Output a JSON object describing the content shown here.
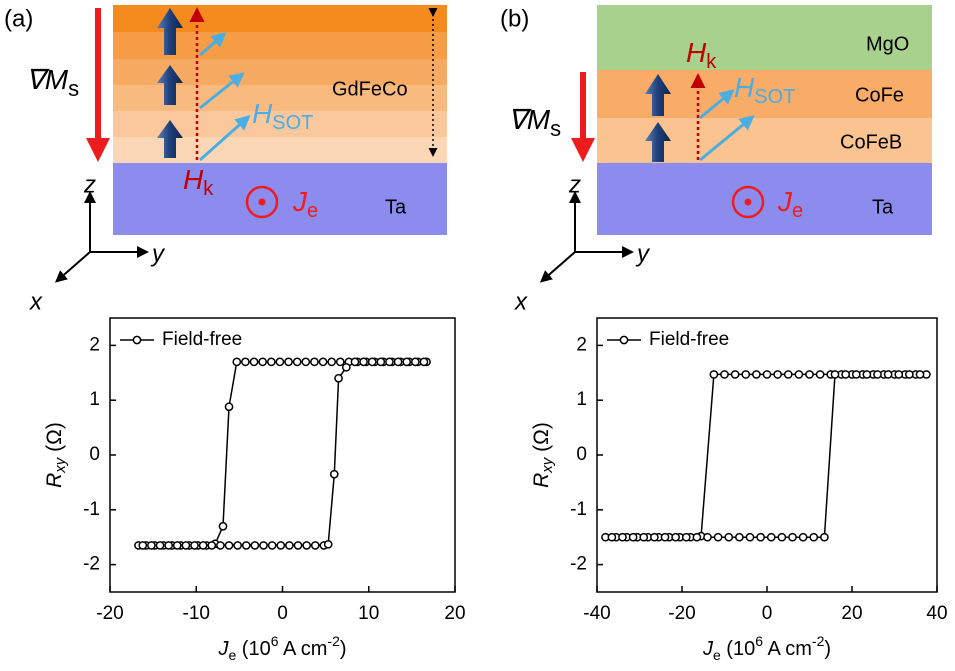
{
  "panels": [
    {
      "label": "(a)",
      "grad": [
        "∇M",
        "s"
      ],
      "hk": [
        "H",
        "k"
      ],
      "hsot": [
        "H",
        "SOT"
      ],
      "je": [
        "J",
        "e"
      ],
      "layers": [
        "GdFeCo",
        "Ta"
      ],
      "axes": [
        "z",
        "y",
        "x"
      ]
    },
    {
      "label": "(b)",
      "grad": [
        "∇M",
        "s"
      ],
      "hk": [
        "H",
        "k"
      ],
      "hsot": [
        "H",
        "SOT"
      ],
      "je": [
        "J",
        "e"
      ],
      "layers": [
        "MgO",
        "CoFe",
        "CoFeB",
        "Ta"
      ],
      "axes": [
        "z",
        "y",
        "x"
      ]
    }
  ],
  "chart_data": [
    {
      "type": "line",
      "x_label": [
        "J",
        "e",
        " (10",
        "6",
        " A cm",
        "-2",
        ")"
      ],
      "y_label": [
        "R",
        "xy",
        " (Ω)"
      ],
      "xlim": [
        -20,
        20
      ],
      "xticks": [
        -20,
        -10,
        0,
        10,
        20
      ],
      "ylim": [
        -2.5,
        2.5
      ],
      "yticks": [
        -2,
        -1,
        0,
        1,
        2
      ],
      "legend": "top-left",
      "series": [
        {
          "name": "Field-free",
          "color": "#000000",
          "x": [
            16.7,
            15.7,
            14.7,
            13.7,
            12.7,
            11.7,
            10.7,
            9.7,
            8.7,
            7.7,
            6.7,
            5.7,
            4.7,
            3.7,
            2.7,
            1.7,
            0.7,
            -0.3,
            -1.3,
            -2.3,
            -3.3,
            -4.3,
            -5.3,
            -6.2,
            -6.9,
            -7.8,
            -8.8,
            -9.8,
            -10.8,
            -11.8,
            -12.8,
            -13.8,
            -14.8,
            -15.8,
            -16.7,
            -16.2,
            -15.2,
            -14.2,
            -13.2,
            -12.2,
            -11.2,
            -10.2,
            -9.2,
            -8.2,
            -7.2,
            -6.2,
            -5.2,
            -4.2,
            -3.2,
            -2.2,
            -1.2,
            -0.2,
            0.8,
            1.8,
            2.8,
            3.8,
            4.8,
            5.3,
            6.0,
            6.5,
            7.4,
            8.4,
            9.4,
            10.4,
            11.4,
            12.4,
            13.4,
            14.4,
            15.4,
            16.4
          ],
          "values": [
            1.7,
            1.7,
            1.7,
            1.7,
            1.7,
            1.7,
            1.7,
            1.7,
            1.7,
            1.7,
            1.7,
            1.7,
            1.7,
            1.7,
            1.7,
            1.7,
            1.7,
            1.7,
            1.7,
            1.7,
            1.7,
            1.7,
            1.7,
            0.88,
            -1.3,
            -1.62,
            -1.65,
            -1.65,
            -1.65,
            -1.65,
            -1.65,
            -1.65,
            -1.65,
            -1.65,
            -1.65,
            -1.65,
            -1.65,
            -1.65,
            -1.65,
            -1.65,
            -1.65,
            -1.65,
            -1.65,
            -1.65,
            -1.65,
            -1.65,
            -1.65,
            -1.65,
            -1.65,
            -1.65,
            -1.65,
            -1.65,
            -1.65,
            -1.65,
            -1.65,
            -1.65,
            -1.65,
            -1.63,
            -0.35,
            1.4,
            1.6,
            1.7,
            1.7,
            1.7,
            1.7,
            1.7,
            1.7,
            1.7,
            1.7,
            1.7
          ]
        }
      ]
    },
    {
      "type": "line",
      "x_label": [
        "J",
        "e",
        " (10",
        "6",
        " A cm",
        "-2",
        ")"
      ],
      "y_label": [
        "R",
        "xy",
        " (Ω)"
      ],
      "xlim": [
        -40,
        40
      ],
      "xticks": [
        -40,
        -20,
        0,
        20,
        40
      ],
      "ylim": [
        -2.5,
        2.5
      ],
      "yticks": [
        -2,
        -1,
        0,
        1,
        2
      ],
      "legend": "top-left",
      "series": [
        {
          "name": "Field-free",
          "color": "#000000",
          "x": [
            37.5,
            35,
            32.5,
            30,
            27.5,
            25,
            22.5,
            20,
            17.5,
            15,
            12.5,
            10,
            7.5,
            5,
            2.5,
            0,
            -2.5,
            -5,
            -7.5,
            -10,
            -12.5,
            -15.5,
            -18,
            -20.5,
            -23,
            -25.5,
            -28,
            -30.5,
            -33,
            -35.5,
            -38,
            -36.5,
            -34,
            -31.5,
            -29,
            -26.5,
            -24,
            -21.5,
            -19,
            -16.5,
            -14,
            -11.5,
            -9,
            -6.5,
            -4,
            -1.5,
            1,
            3.5,
            6,
            8.5,
            11,
            13.5,
            16,
            18.5,
            21,
            23.5,
            26,
            28.5,
            31,
            33.5,
            36
          ],
          "values": [
            1.47,
            1.47,
            1.47,
            1.47,
            1.47,
            1.47,
            1.47,
            1.47,
            1.47,
            1.47,
            1.47,
            1.47,
            1.47,
            1.47,
            1.47,
            1.47,
            1.47,
            1.47,
            1.47,
            1.47,
            1.47,
            -1.48,
            -1.5,
            -1.5,
            -1.5,
            -1.5,
            -1.5,
            -1.5,
            -1.5,
            -1.5,
            -1.5,
            -1.5,
            -1.5,
            -1.5,
            -1.5,
            -1.5,
            -1.5,
            -1.5,
            -1.5,
            -1.5,
            -1.5,
            -1.5,
            -1.5,
            -1.5,
            -1.5,
            -1.5,
            -1.5,
            -1.5,
            -1.5,
            -1.5,
            -1.5,
            -1.5,
            1.47,
            1.47,
            1.47,
            1.47,
            1.47,
            1.47,
            1.47,
            1.47,
            1.47
          ]
        }
      ]
    }
  ]
}
